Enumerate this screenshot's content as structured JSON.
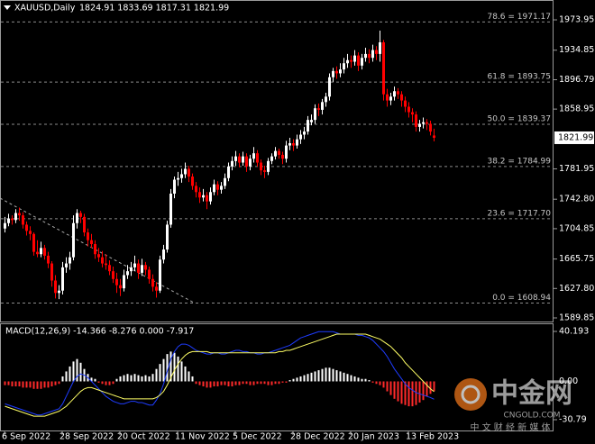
{
  "chart_data": [
    {
      "type": "candlestick",
      "title": "XAUUSD,Daily",
      "subtitle": "1824.91 1833.69 1817.31 1821.99",
      "categories": [
        "6 Sep 2022",
        null,
        null,
        null,
        null,
        null,
        null,
        null,
        null,
        null,
        null,
        null,
        null,
        null,
        null,
        null,
        "28 Sep 2022",
        null,
        null,
        null,
        null,
        null,
        null,
        null,
        null,
        null,
        null,
        null,
        null,
        null,
        null,
        null,
        "20 Oct 2022",
        null,
        null,
        null,
        null,
        null,
        null,
        null,
        null,
        null,
        null,
        null,
        null,
        null,
        null,
        null,
        "11 Nov 2022",
        null,
        null,
        null,
        null,
        null,
        null,
        null,
        null,
        null,
        null,
        null,
        null,
        null,
        null,
        null,
        "5 Dec 2022",
        null,
        null,
        null,
        null,
        null,
        null,
        null,
        null,
        null,
        null,
        null,
        null,
        null,
        null,
        null,
        "28 Dec 2022",
        null,
        null,
        null,
        null,
        null,
        null,
        null,
        null,
        null,
        null,
        null,
        null,
        null,
        null,
        null,
        "20 Jan 2023",
        null,
        null,
        null,
        null,
        null,
        null,
        null,
        null,
        null,
        null,
        null,
        null,
        null,
        null,
        null,
        "13 Feb 2023",
        null,
        null,
        null,
        null,
        null,
        null,
        null
      ],
      "open": [
        1705,
        1712,
        1718,
        1716,
        1725,
        1722,
        1710,
        1702,
        1698,
        1675,
        1672,
        1680,
        1670,
        1660,
        1638,
        1622,
        1625,
        1655,
        1660,
        1668,
        1712,
        1725,
        1720,
        1700,
        1690,
        1685,
        1672,
        1668,
        1660,
        1658,
        1650,
        1640,
        1632,
        1628,
        1645,
        1650,
        1655,
        1660,
        1648,
        1658,
        1652,
        1640,
        1630,
        1625,
        1665,
        1678,
        1710,
        1750,
        1768,
        1770,
        1775,
        1782,
        1772,
        1760,
        1752,
        1745,
        1748,
        1740,
        1752,
        1762,
        1755,
        1760,
        1770,
        1785,
        1792,
        1798,
        1790,
        1798,
        1785,
        1795,
        1802,
        1790,
        1780,
        1778,
        1792,
        1798,
        1805,
        1800,
        1795,
        1812,
        1815,
        1812,
        1820,
        1826,
        1830,
        1842,
        1845,
        1860,
        1858,
        1868,
        1875,
        1900,
        1908,
        1905,
        1910,
        1918,
        1922,
        1920,
        1928,
        1915,
        1925,
        1930,
        1925,
        1935,
        1930,
        1945,
        1878,
        1870,
        1875,
        1882,
        1878,
        1870,
        1862,
        1855,
        1852,
        1836,
        1840,
        1842,
        1840,
        1824.91
      ],
      "high": [
        1720,
        1724,
        1722,
        1730,
        1732,
        1726,
        1714,
        1708,
        1700,
        1690,
        1688,
        1684,
        1675,
        1663,
        1645,
        1632,
        1662,
        1668,
        1675,
        1722,
        1730,
        1728,
        1724,
        1705,
        1698,
        1690,
        1680,
        1676,
        1672,
        1664,
        1656,
        1648,
        1640,
        1652,
        1658,
        1662,
        1670,
        1665,
        1666,
        1662,
        1656,
        1646,
        1636,
        1670,
        1684,
        1715,
        1756,
        1772,
        1778,
        1782,
        1790,
        1786,
        1776,
        1765,
        1758,
        1756,
        1752,
        1758,
        1768,
        1766,
        1765,
        1776,
        1790,
        1798,
        1805,
        1802,
        1804,
        1802,
        1800,
        1810,
        1806,
        1794,
        1786,
        1796,
        1802,
        1810,
        1808,
        1804,
        1818,
        1822,
        1820,
        1826,
        1832,
        1836,
        1850,
        1852,
        1865,
        1866,
        1872,
        1880,
        1905,
        1912,
        1914,
        1918,
        1925,
        1930,
        1928,
        1935,
        1932,
        1930,
        1938,
        1936,
        1942,
        1940,
        1960,
        1948,
        1885,
        1880,
        1888,
        1886,
        1882,
        1875,
        1868,
        1860,
        1856,
        1845,
        1848,
        1846,
        1844,
        1833.69
      ],
      "low": [
        1700,
        1708,
        1710,
        1712,
        1715,
        1705,
        1696,
        1690,
        1670,
        1668,
        1668,
        1665,
        1654,
        1630,
        1615,
        1614,
        1620,
        1648,
        1652,
        1664,
        1705,
        1712,
        1695,
        1682,
        1680,
        1666,
        1662,
        1655,
        1652,
        1645,
        1635,
        1622,
        1618,
        1624,
        1640,
        1644,
        1650,
        1640,
        1644,
        1645,
        1634,
        1624,
        1616,
        1622,
        1660,
        1674,
        1706,
        1744,
        1760,
        1764,
        1770,
        1765,
        1755,
        1745,
        1738,
        1740,
        1730,
        1736,
        1748,
        1748,
        1750,
        1756,
        1766,
        1780,
        1786,
        1784,
        1786,
        1778,
        1780,
        1790,
        1785,
        1774,
        1770,
        1774,
        1788,
        1794,
        1795,
        1788,
        1790,
        1806,
        1805,
        1808,
        1814,
        1820,
        1826,
        1838,
        1840,
        1850,
        1852,
        1862,
        1870,
        1894,
        1898,
        1900,
        1905,
        1912,
        1912,
        1915,
        1908,
        1910,
        1920,
        1918,
        1920,
        1922,
        1920,
        1870,
        1862,
        1864,
        1870,
        1872,
        1862,
        1855,
        1848,
        1842,
        1830,
        1830,
        1834,
        1832,
        1825,
        1817.31
      ],
      "close": [
        1712,
        1718,
        1716,
        1725,
        1722,
        1710,
        1702,
        1698,
        1675,
        1672,
        1680,
        1670,
        1660,
        1638,
        1622,
        1625,
        1655,
        1660,
        1668,
        1712,
        1725,
        1720,
        1700,
        1690,
        1685,
        1672,
        1668,
        1660,
        1658,
        1650,
        1640,
        1632,
        1628,
        1645,
        1650,
        1655,
        1660,
        1648,
        1658,
        1652,
        1640,
        1630,
        1625,
        1665,
        1678,
        1710,
        1750,
        1768,
        1770,
        1775,
        1782,
        1772,
        1760,
        1752,
        1745,
        1748,
        1740,
        1752,
        1762,
        1755,
        1760,
        1770,
        1785,
        1792,
        1798,
        1790,
        1798,
        1785,
        1795,
        1802,
        1790,
        1780,
        1778,
        1792,
        1798,
        1805,
        1800,
        1795,
        1812,
        1815,
        1812,
        1820,
        1826,
        1830,
        1845,
        1845,
        1860,
        1858,
        1868,
        1875,
        1900,
        1908,
        1905,
        1910,
        1918,
        1922,
        1920,
        1928,
        1915,
        1925,
        1930,
        1925,
        1935,
        1930,
        1945,
        1878,
        1870,
        1875,
        1882,
        1878,
        1870,
        1862,
        1855,
        1852,
        1836,
        1840,
        1842,
        1840,
        1830,
        1821.99
      ],
      "up_color": "#ffffff",
      "down_color": "#ff0000",
      "ylim": [
        1585.2,
        1997.2
      ],
      "yticks": [
        1973.95,
        1934.85,
        1896.79,
        1858.95,
        1781.95,
        {
          "value": 1742.8,
          "label": "1742.80"
        },
        1704.85,
        1665.75,
        {
          "value": 1627.8,
          "label": "1627.80"
        },
        1589.85
      ],
      "levels": [
        {
          "value": 1971.17,
          "label": "78.6 = 1971.17"
        },
        {
          "value": 1893.75,
          "label": "61.8 = 1893.75"
        },
        {
          "value": 1839.37,
          "label": "50.0 = 1839.37"
        },
        {
          "value": 1784.99,
          "label": "38.2 = 1784.99"
        },
        {
          "value": 1717.7,
          "label": "23.6 = 1717.70"
        },
        {
          "value": 1608.94,
          "label": "0.0 = 1608.94"
        }
      ]
    },
    {
      "type": "macd",
      "title": "MACD(12,26,9) -14.366 -8.276 0.000 -7.917",
      "histogram": {
        "up_color": "#ffffff",
        "down_color": "#ff2a2a",
        "values": [
          -3,
          -3,
          -4,
          -4,
          -4,
          -5,
          -5,
          -5,
          -6,
          -6,
          -6,
          -5,
          -5,
          -4,
          -3,
          -2,
          4,
          8,
          12,
          16,
          18,
          15,
          10,
          6,
          3,
          2,
          -1,
          -2,
          -3,
          -3,
          -2,
          2,
          4,
          5,
          6,
          5,
          6,
          5,
          4,
          5,
          4,
          6,
          10,
          14,
          18,
          22,
          24,
          23,
          20,
          16,
          12,
          8,
          4,
          -2,
          -3,
          -4,
          -5,
          -5,
          -4,
          -4,
          -3,
          -3,
          -4,
          -4,
          -3,
          -3,
          -2,
          -2,
          -3,
          -3,
          -2,
          -2,
          -2,
          -3,
          -3,
          -2,
          -2,
          -1,
          -1,
          1,
          2,
          3,
          4,
          5,
          6,
          7,
          8,
          9,
          10,
          11,
          11,
          10,
          9,
          8,
          7,
          6,
          5,
          4,
          3,
          2,
          2,
          1,
          -1,
          -2,
          -3,
          -5,
          -8,
          -11,
          -14,
          -16,
          -18,
          -19,
          -20,
          -20,
          -19,
          -17,
          -15,
          -12,
          -10,
          -7.917
        ]
      },
      "series": [
        {
          "color": "#1e3cff",
          "values": [
            -18,
            -19,
            -20,
            -21,
            -22,
            -23,
            -24,
            -25,
            -26,
            -27,
            -27,
            -26,
            -25,
            -24,
            -23,
            -22,
            -18,
            -12,
            -6,
            0,
            4,
            6,
            5,
            3,
            0,
            -3,
            -6,
            -9,
            -12,
            -14,
            -16,
            -17,
            -18,
            -18,
            -17,
            -16,
            -16,
            -17,
            -17,
            -18,
            -19,
            -19,
            -15,
            -10,
            -2,
            8,
            18,
            24,
            28,
            30,
            30,
            29,
            27,
            25,
            24,
            23,
            22,
            22,
            23,
            23,
            22,
            22,
            23,
            24,
            25,
            25,
            24,
            24,
            23,
            23,
            22,
            22,
            23,
            23,
            24,
            25,
            26,
            27,
            28,
            29,
            31,
            33,
            35,
            36,
            37,
            38,
            39,
            40,
            40,
            40,
            40,
            40,
            39,
            38,
            38,
            38,
            38,
            38,
            37,
            37,
            36,
            35,
            33,
            30,
            27,
            24,
            20,
            15,
            10,
            6,
            2,
            -2,
            -5,
            -7,
            -9,
            -10,
            -11,
            -12,
            -13,
            -14.366
          ]
        },
        {
          "color": "#ffff66",
          "values": [
            -20,
            -21,
            -22,
            -23,
            -24,
            -25,
            -26,
            -27,
            -28,
            -28,
            -28,
            -28,
            -27,
            -26,
            -25,
            -24,
            -22,
            -20,
            -17,
            -14,
            -11,
            -8,
            -6,
            -5,
            -5,
            -6,
            -7,
            -8,
            -9,
            -10,
            -11,
            -12,
            -13,
            -14,
            -14,
            -14,
            -14,
            -14,
            -14,
            -14,
            -14,
            -14,
            -13,
            -11,
            -8,
            -3,
            3,
            9,
            14,
            18,
            21,
            23,
            24,
            24,
            24,
            24,
            24,
            23,
            23,
            23,
            23,
            23,
            23,
            23,
            23,
            23,
            23,
            23,
            23,
            23,
            23,
            23,
            23,
            23,
            23,
            23,
            24,
            24,
            25,
            25,
            26,
            27,
            28,
            29,
            30,
            31,
            32,
            33,
            34,
            35,
            36,
            37,
            38,
            38,
            38,
            38,
            38,
            38,
            38,
            38,
            38,
            37,
            36,
            35,
            34,
            32,
            30,
            28,
            25,
            22,
            19,
            15,
            12,
            9,
            6,
            3,
            0,
            -3,
            -6,
            -8.276
          ]
        }
      ],
      "ylim": [
        -30.79,
        40.193
      ],
      "yticks": [
        40.193,
        {
          "value": 0,
          "label": "0.00"
        },
        -30.79
      ]
    }
  ],
  "watermark": {
    "brand": "中金网",
    "site": "CNGOLD.COM",
    "tagline": "中 文 财 经 新 媒 体"
  }
}
